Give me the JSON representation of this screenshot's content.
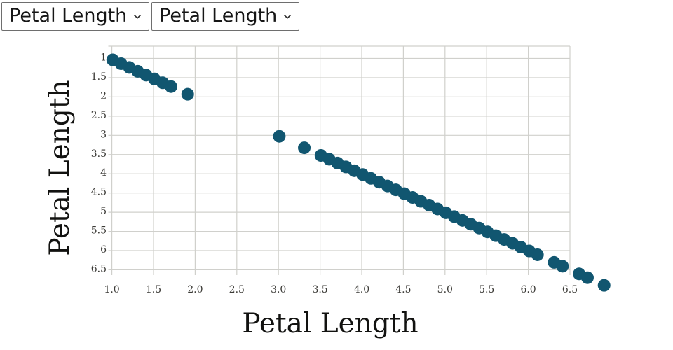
{
  "controls": {
    "x_select": {
      "value": "Petal Length"
    },
    "y_select": {
      "value": "Petal Length"
    }
  },
  "chart_data": {
    "type": "scatter",
    "xlabel": "Petal Length",
    "ylabel": "Petal Length",
    "x_tick_labels": [
      "1.0",
      "1.5",
      "2.0",
      "2.5",
      "3.0",
      "3.5",
      "4.0",
      "4.5",
      "5.0",
      "5.5",
      "6.0",
      "6.5"
    ],
    "y_tick_labels": [
      "1",
      "1.5",
      "2",
      "2.5",
      "3",
      "3.5",
      "4",
      "4.5",
      "5",
      "5.5",
      "6",
      "6.5"
    ],
    "xlim": [
      1.0,
      6.9
    ],
    "ylim_inverted": true,
    "grid": true,
    "values": [
      1.0,
      1.1,
      1.2,
      1.3,
      1.4,
      1.5,
      1.6,
      1.7,
      1.9,
      3.0,
      3.3,
      3.5,
      3.6,
      3.7,
      3.8,
      3.9,
      4.0,
      4.1,
      4.2,
      4.3,
      4.4,
      4.5,
      4.6,
      4.7,
      4.8,
      4.9,
      5.0,
      5.1,
      5.2,
      5.3,
      5.4,
      5.5,
      5.6,
      5.7,
      5.8,
      5.9,
      6.0,
      6.1,
      6.3,
      6.4,
      6.6,
      6.7,
      6.9
    ],
    "point_color": "#115670",
    "grid_color": "#d0d0cc",
    "tick_label_color": "#3b3a36",
    "axis_title_color": "#121210"
  }
}
